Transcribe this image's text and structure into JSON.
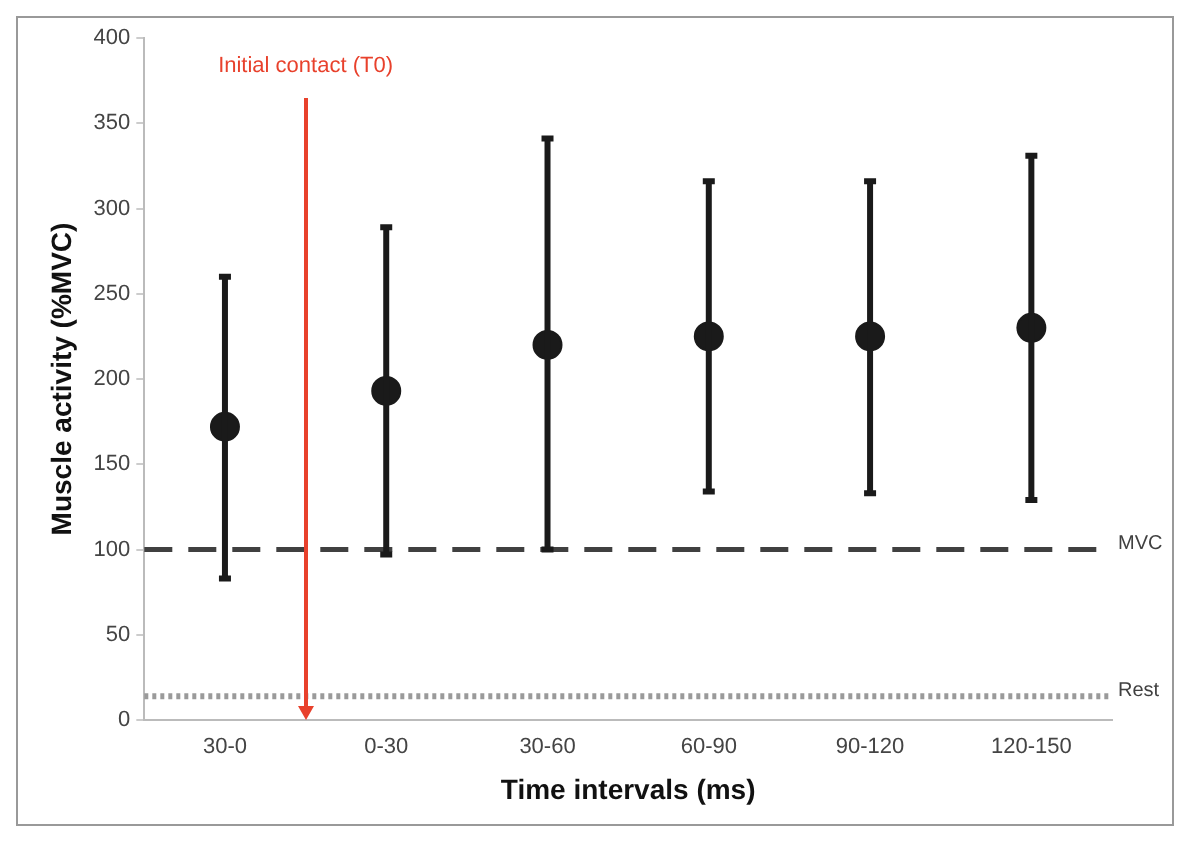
{
  "chart_data": {
    "type": "scatter",
    "xlabel": "Time intervals (ms)",
    "ylabel": "Muscle activity (%MVC)",
    "categories": [
      "30-0",
      "0-30",
      "30-60",
      "60-90",
      "90-120",
      "120-150"
    ],
    "values": [
      172,
      193,
      220,
      225,
      225,
      230
    ],
    "errors": [
      [
        83,
        260
      ],
      [
        97,
        289
      ],
      [
        100,
        341
      ],
      [
        134,
        316
      ],
      [
        133,
        316
      ],
      [
        129,
        331
      ]
    ],
    "color": "#1a1a1a",
    "marker": "circle",
    "ylim": [
      0,
      400
    ],
    "yticks": [
      0,
      50,
      100,
      150,
      200,
      250,
      300,
      350,
      400
    ],
    "grid": false,
    "legend": false,
    "ref_lines": [
      {
        "axis": "y",
        "value": 100,
        "label": "MVC",
        "color": "#404040",
        "line_style": "dashed"
      },
      {
        "axis": "y",
        "value": 14,
        "label": "Rest",
        "color": "#9a9a9a",
        "line_style": "dotted"
      }
    ],
    "annotations": [
      "Initial contact (T0)"
    ]
  }
}
